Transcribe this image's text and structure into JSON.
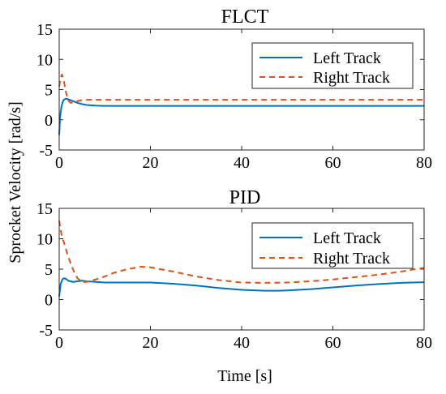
{
  "figure": {
    "ylabel": "Sprocket Velocity [rad/s]",
    "xlabel": "Time [s]"
  },
  "colors": {
    "left_track": "#0072BD",
    "right_track": "#D95319",
    "axes": "#262626",
    "background": "#ffffff"
  },
  "chart_data": [
    {
      "type": "line",
      "title": "FLCT",
      "xlabel": "",
      "ylabel": "Sprocket Velocity [rad/s]",
      "xlim": [
        0,
        80
      ],
      "ylim": [
        -5,
        15
      ],
      "xticks": [
        "0",
        "20",
        "40",
        "60",
        "80"
      ],
      "yticks": [
        "-5",
        "0",
        "5",
        "10",
        "15"
      ],
      "legend_position": "top-right",
      "series": [
        {
          "name": "Left Track",
          "style": "solid",
          "x": [
            0,
            0.2,
            0.5,
            0.8,
            1,
            1.5,
            2,
            3,
            4,
            5,
            6,
            8,
            10,
            80
          ],
          "y": [
            -2.5,
            0.5,
            2.2,
            3.0,
            3.3,
            3.5,
            3.4,
            3.1,
            2.8,
            2.6,
            2.45,
            2.35,
            2.3,
            2.3
          ]
        },
        {
          "name": "Right Track",
          "style": "dashed",
          "x": [
            0,
            0.3,
            0.6,
            1,
            1.5,
            2,
            2.5,
            3,
            4,
            5,
            6,
            8,
            10,
            80
          ],
          "y": [
            5.5,
            7.0,
            7.5,
            6.5,
            4.5,
            3.2,
            2.8,
            2.9,
            3.1,
            3.25,
            3.3,
            3.3,
            3.3,
            3.3
          ]
        }
      ]
    },
    {
      "type": "line",
      "title": "PID",
      "xlabel": "Time [s]",
      "ylabel": "Sprocket Velocity [rad/s]",
      "xlim": [
        0,
        80
      ],
      "ylim": [
        -5,
        15
      ],
      "xticks": [
        "0",
        "20",
        "40",
        "60",
        "80"
      ],
      "yticks": [
        "-5",
        "0",
        "5",
        "10",
        "15"
      ],
      "legend_position": "top-right",
      "series": [
        {
          "name": "Left Track",
          "style": "solid",
          "x": [
            0,
            0.3,
            0.7,
            1,
            1.5,
            2,
            3,
            4,
            5,
            6,
            8,
            10,
            15,
            20,
            25,
            30,
            35,
            40,
            45,
            48,
            50,
            55,
            60,
            65,
            70,
            75,
            80
          ],
          "y": [
            0.5,
            2.5,
            3.3,
            3.5,
            3.4,
            3.1,
            2.9,
            3.0,
            3.1,
            3.0,
            2.9,
            2.8,
            2.8,
            2.8,
            2.6,
            2.3,
            1.9,
            1.6,
            1.45,
            1.45,
            1.5,
            1.7,
            2.0,
            2.3,
            2.55,
            2.75,
            2.85
          ]
        },
        {
          "name": "Right Track",
          "style": "dashed",
          "x": [
            0,
            0.3,
            0.7,
            1,
            2,
            3,
            4,
            5,
            6,
            8,
            10,
            12,
            15,
            18,
            20,
            25,
            30,
            35,
            40,
            45,
            50,
            55,
            60,
            65,
            70,
            75,
            78,
            80
          ],
          "y": [
            13.0,
            11.5,
            10.0,
            9.5,
            7.0,
            5.0,
            3.5,
            2.9,
            2.9,
            3.3,
            3.8,
            4.4,
            5.0,
            5.4,
            5.3,
            4.6,
            3.8,
            3.2,
            2.8,
            2.75,
            2.8,
            3.0,
            3.3,
            3.7,
            4.1,
            4.6,
            5.0,
            5.2
          ]
        }
      ]
    }
  ]
}
